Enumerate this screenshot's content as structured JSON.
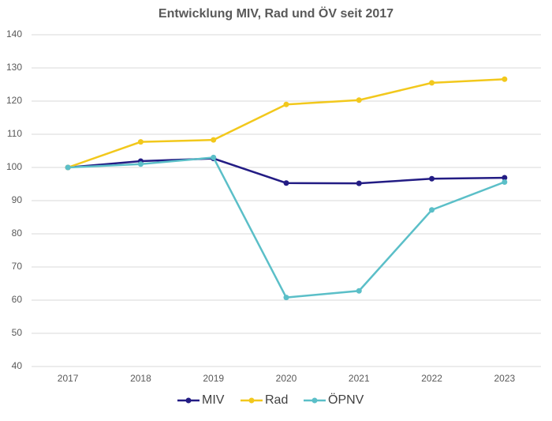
{
  "chart_data": {
    "type": "line",
    "title": "Entwicklung MIV, Rad und ÖV seit 2017",
    "categories": [
      "2017",
      "2018",
      "2019",
      "2020",
      "2021",
      "2022",
      "2023"
    ],
    "series": [
      {
        "name": "MIV",
        "color": "#231c84",
        "values": [
          100,
          101.9,
          102.7,
          95.3,
          95.2,
          96.6,
          96.9
        ]
      },
      {
        "name": "Rad",
        "color": "#f2c81c",
        "values": [
          100,
          107.7,
          108.3,
          119,
          120.3,
          125.5,
          126.6
        ]
      },
      {
        "name": "ÖPNV",
        "color": "#5bbfc8",
        "values": [
          100,
          101,
          103,
          60.8,
          62.8,
          87.2,
          95.6
        ]
      }
    ],
    "ylim": [
      40,
      140
    ],
    "yticks": [
      40,
      50,
      60,
      70,
      80,
      90,
      100,
      110,
      120,
      130,
      140
    ],
    "grid": true,
    "legend": "bottom"
  }
}
